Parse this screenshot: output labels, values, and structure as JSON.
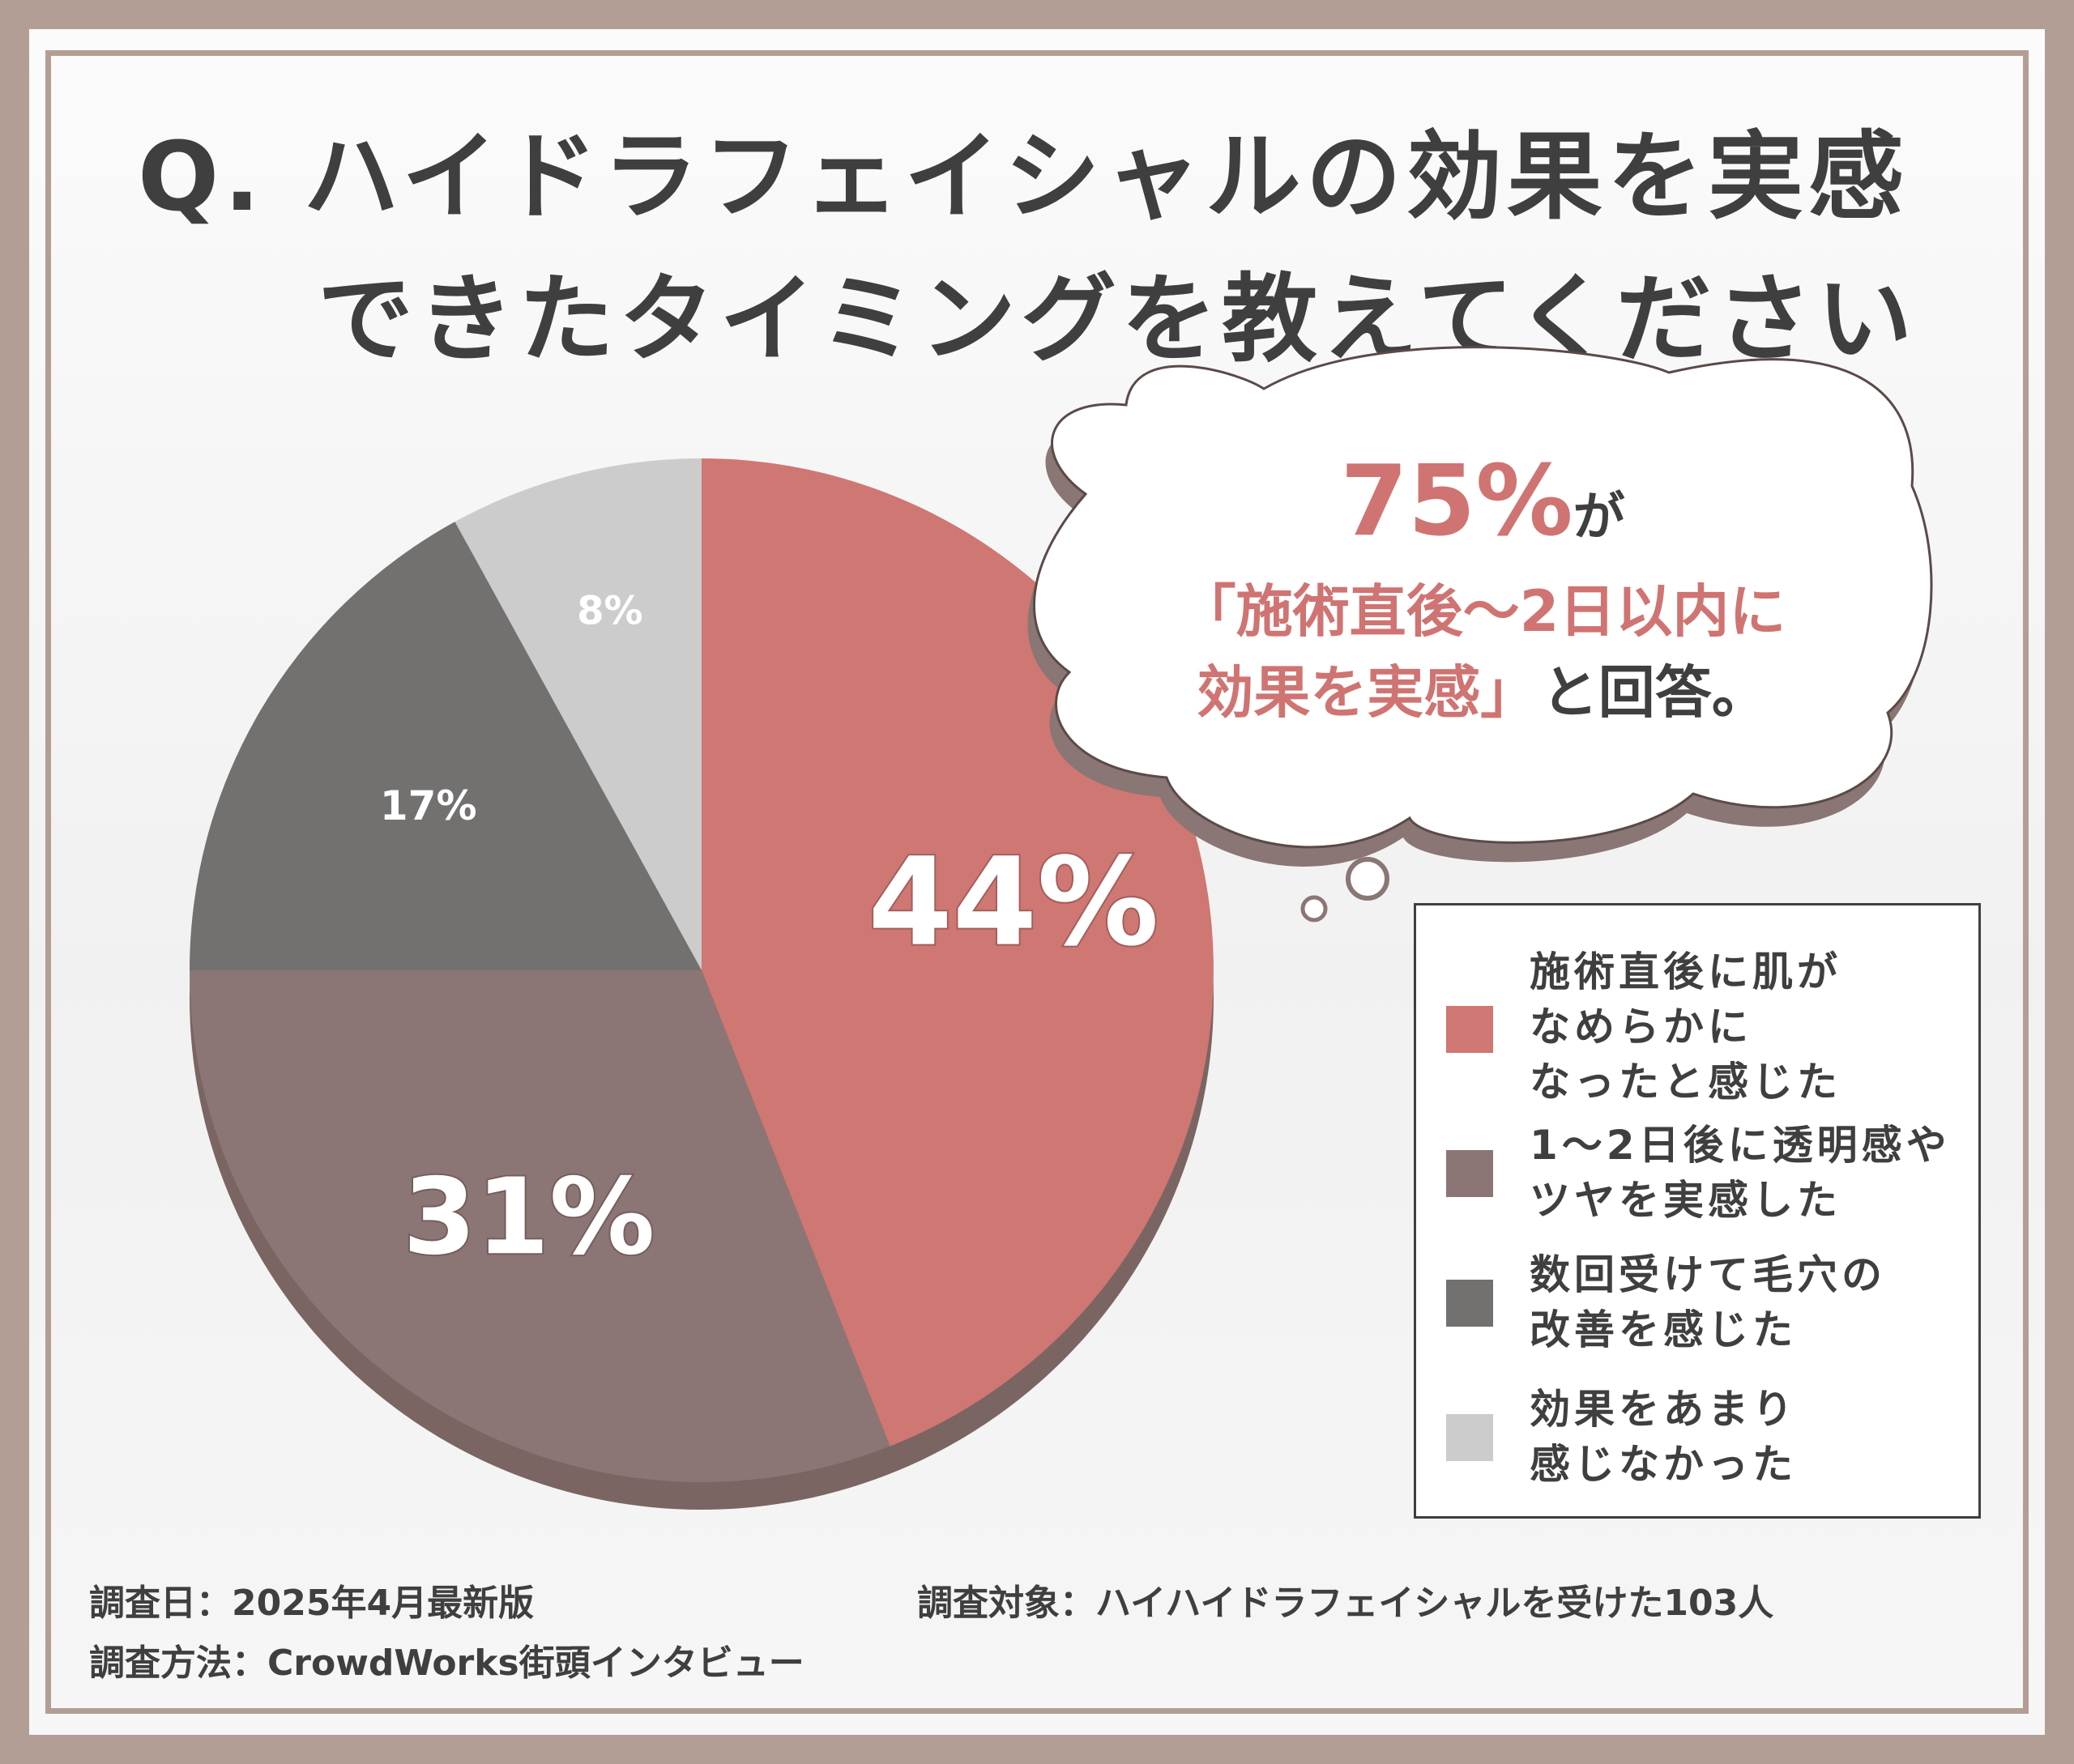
{
  "title": {
    "line1": "Q. ハイドラフェイシャルの効果を実感",
    "line2": "できたタイミングを教えてください"
  },
  "chart_data": {
    "type": "pie",
    "categories": [
      "施術直後に肌がなめらかになったと感じた",
      "1〜2日後に透明感やツヤを実感した",
      "数回受けて毛穴の改善を感じた",
      "効果をあまり感じなかった"
    ],
    "values": [
      44,
      31,
      17,
      8
    ],
    "labels": [
      "44%",
      "31%",
      "17%",
      "8%"
    ],
    "colors": [
      "#cf7773",
      "#8b7675",
      "#737070",
      "#cccccc"
    ],
    "start_angle": "12 o'clock",
    "direction": "clockwise"
  },
  "callout": {
    "percent": "75%",
    "ga": "が",
    "line2": "「施術直後〜2日以内に",
    "line3_red": "効果を実感」",
    "line3_dark": "と回答。"
  },
  "legend": {
    "items": [
      {
        "label": "施術直後に肌が\nなめらかに\nなったと感じた",
        "color": "#cf7773"
      },
      {
        "label": "1〜2日後に透明感や\nツヤを実感した",
        "color": "#8b7675"
      },
      {
        "label": "数回受けて毛穴の\n改善を感じた",
        "color": "#737070"
      },
      {
        "label": "効果をあまり\n感じなかった",
        "color": "#cccccc"
      }
    ]
  },
  "footer": {
    "date": "調査日：2025年4月最新版",
    "target": "調査対象：ハイハイドラフェイシャルを受けた103人",
    "method": "調査方法：CrowdWorks街頭インタビュー"
  }
}
